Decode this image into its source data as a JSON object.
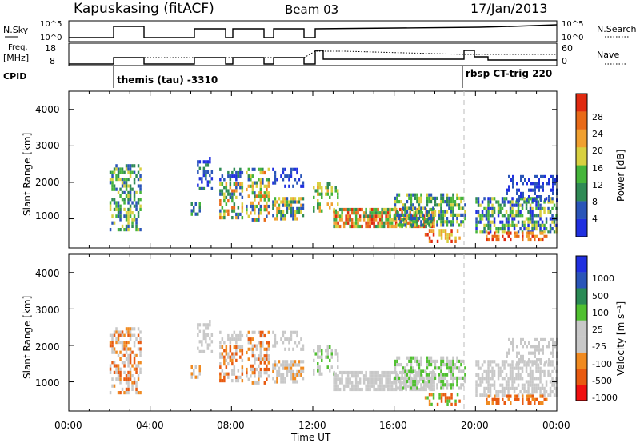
{
  "header": {
    "radar": "Kapuskasing (fitACF)",
    "beam": "Beam 03",
    "date": "17/Jan/2013"
  },
  "panels": {
    "nsky": {
      "left_label": "N.Sky",
      "left_ticks": [
        "10^5",
        "10^0"
      ],
      "right_ticks": [
        "10^5",
        "10^0"
      ],
      "right_label": "N.Search"
    },
    "freq": {
      "left_label_1": "Freq.",
      "left_label_2": "[MHz]",
      "left_ticks": [
        "18",
        "8"
      ],
      "right_ticks": [
        "60",
        "0"
      ],
      "right_label": "Nave"
    },
    "cpid": {
      "label": "CPID",
      "program_1": "themis (tau) -3310",
      "program_2": "rbsp CT-trig 220"
    }
  },
  "colors": {
    "power": [
      "#2030e0",
      "#2a55b8",
      "#2f8a55",
      "#45b53a",
      "#d8d040",
      "#f0a030",
      "#e86a18",
      "#e02a10"
    ],
    "velocity": [
      "#f01010",
      "#e85a10",
      "#f08a20",
      "#c8c8c8",
      "#c8c8c8",
      "#50c030",
      "#2a8a55",
      "#2a55b8",
      "#2030e0"
    ]
  },
  "chart_data": [
    {
      "type": "heatmap",
      "title": "",
      "ylabel": "Slant Range [km]",
      "xlabel": "",
      "ylim": [
        200,
        4500
      ],
      "xlim": [
        "00:00",
        "24:00"
      ],
      "yticks": [
        "1000",
        "2000",
        "3000",
        "4000"
      ],
      "colorbar": {
        "label": "Power [dB]",
        "ticks": [
          "4",
          "8",
          "12",
          "16",
          "20",
          "24",
          "28"
        ]
      },
      "approx_regions": [
        {
          "start": "02:00",
          "end": "03:30",
          "range_km": [
            700,
            2500
          ],
          "level": "8-16 dB, peaks to ~20"
        },
        {
          "start": "06:00",
          "end": "09:50",
          "range_km": [
            1000,
            2700
          ],
          "level": "4-20 dB"
        },
        {
          "start": "10:00",
          "end": "11:30",
          "range_km": [
            900,
            2400
          ],
          "level": "4-16 dB"
        },
        {
          "start": "12:00",
          "end": "19:30",
          "range_km": [
            800,
            2000
          ],
          "level": "8-28 dB"
        },
        {
          "start": "17:30",
          "end": "24:00",
          "range_km": [
            300,
            700
          ],
          "level": "20-28 dB"
        },
        {
          "start": "20:00",
          "end": "24:00",
          "range_km": [
            500,
            2200
          ],
          "level": "4-16 dB"
        }
      ]
    },
    {
      "type": "heatmap",
      "title": "",
      "ylabel": "Slant Range [km]",
      "xlabel": "Time UT",
      "ylim": [
        200,
        4500
      ],
      "xlim": [
        "00:00",
        "24:00"
      ],
      "yticks": [
        "1000",
        "2000",
        "3000",
        "4000"
      ],
      "xticks": [
        "00:00",
        "04:00",
        "08:00",
        "12:00",
        "16:00",
        "20:00",
        "00:00"
      ],
      "colorbar": {
        "label": "Velocity [m s⁻¹]",
        "ticks": [
          "1000",
          "500",
          "100",
          "25",
          "-25",
          "-100",
          "-500",
          "-1000"
        ]
      },
      "approx_regions": [
        {
          "start": "02:00",
          "end": "03:30",
          "range_km": [
            700,
            2500
          ],
          "velocity": "-25 to -500"
        },
        {
          "start": "06:00",
          "end": "09:50",
          "range_km": [
            1000,
            2700
          ],
          "velocity": "-100 to 25"
        },
        {
          "start": "10:00",
          "end": "11:30",
          "range_km": [
            900,
            2400
          ],
          "velocity": "-100 to 25"
        },
        {
          "start": "12:00",
          "end": "19:30",
          "range_km": [
            700,
            2000
          ],
          "velocity": "-25 to 25"
        },
        {
          "start": "21:00",
          "end": "23:00",
          "range_km": [
            400,
            800
          ],
          "velocity": "-100 to -500"
        }
      ]
    }
  ]
}
